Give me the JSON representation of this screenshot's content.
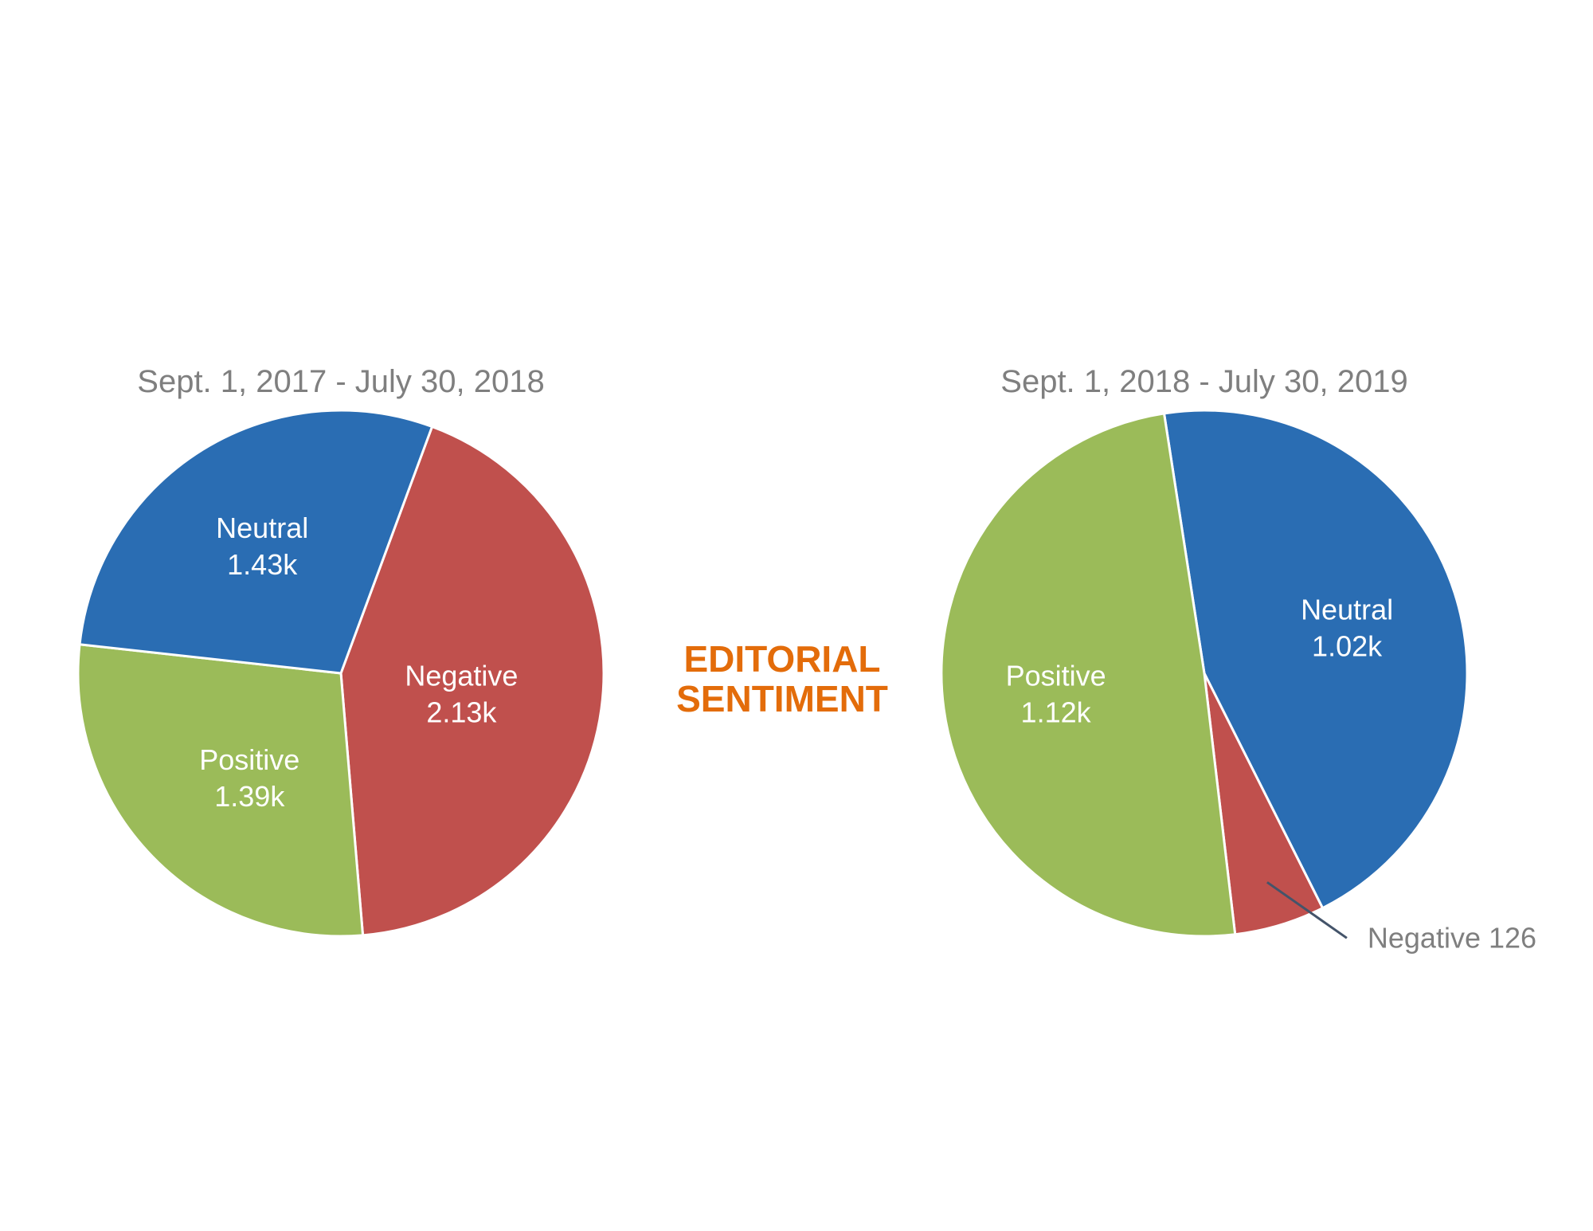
{
  "center_title": {
    "line1": "EDITORIAL",
    "line2": "SENTIMENT",
    "color": "#e36c0a"
  },
  "colors": {
    "Negative": "#c0504d",
    "Neutral": "#2a6db3",
    "Positive": "#9bbb59",
    "separator": "#ffffff"
  },
  "chart_data": [
    {
      "type": "pie",
      "title": "Sept. 1, 2017 - July 30, 2018",
      "slices": [
        {
          "name": "Negative",
          "value": 2130,
          "display": "2.13k"
        },
        {
          "name": "Positive",
          "value": 1390,
          "display": "1.39k"
        },
        {
          "name": "Neutral",
          "value": 1430,
          "display": "1.43k"
        }
      ]
    },
    {
      "type": "pie",
      "title": "Sept. 1, 2018 - July 30, 2019",
      "slices": [
        {
          "name": "Neutral",
          "value": 1020,
          "display": "1.02k"
        },
        {
          "name": "Negative",
          "value": 126,
          "display": "126"
        },
        {
          "name": "Positive",
          "value": 1120,
          "display": "1.12k"
        }
      ]
    }
  ]
}
